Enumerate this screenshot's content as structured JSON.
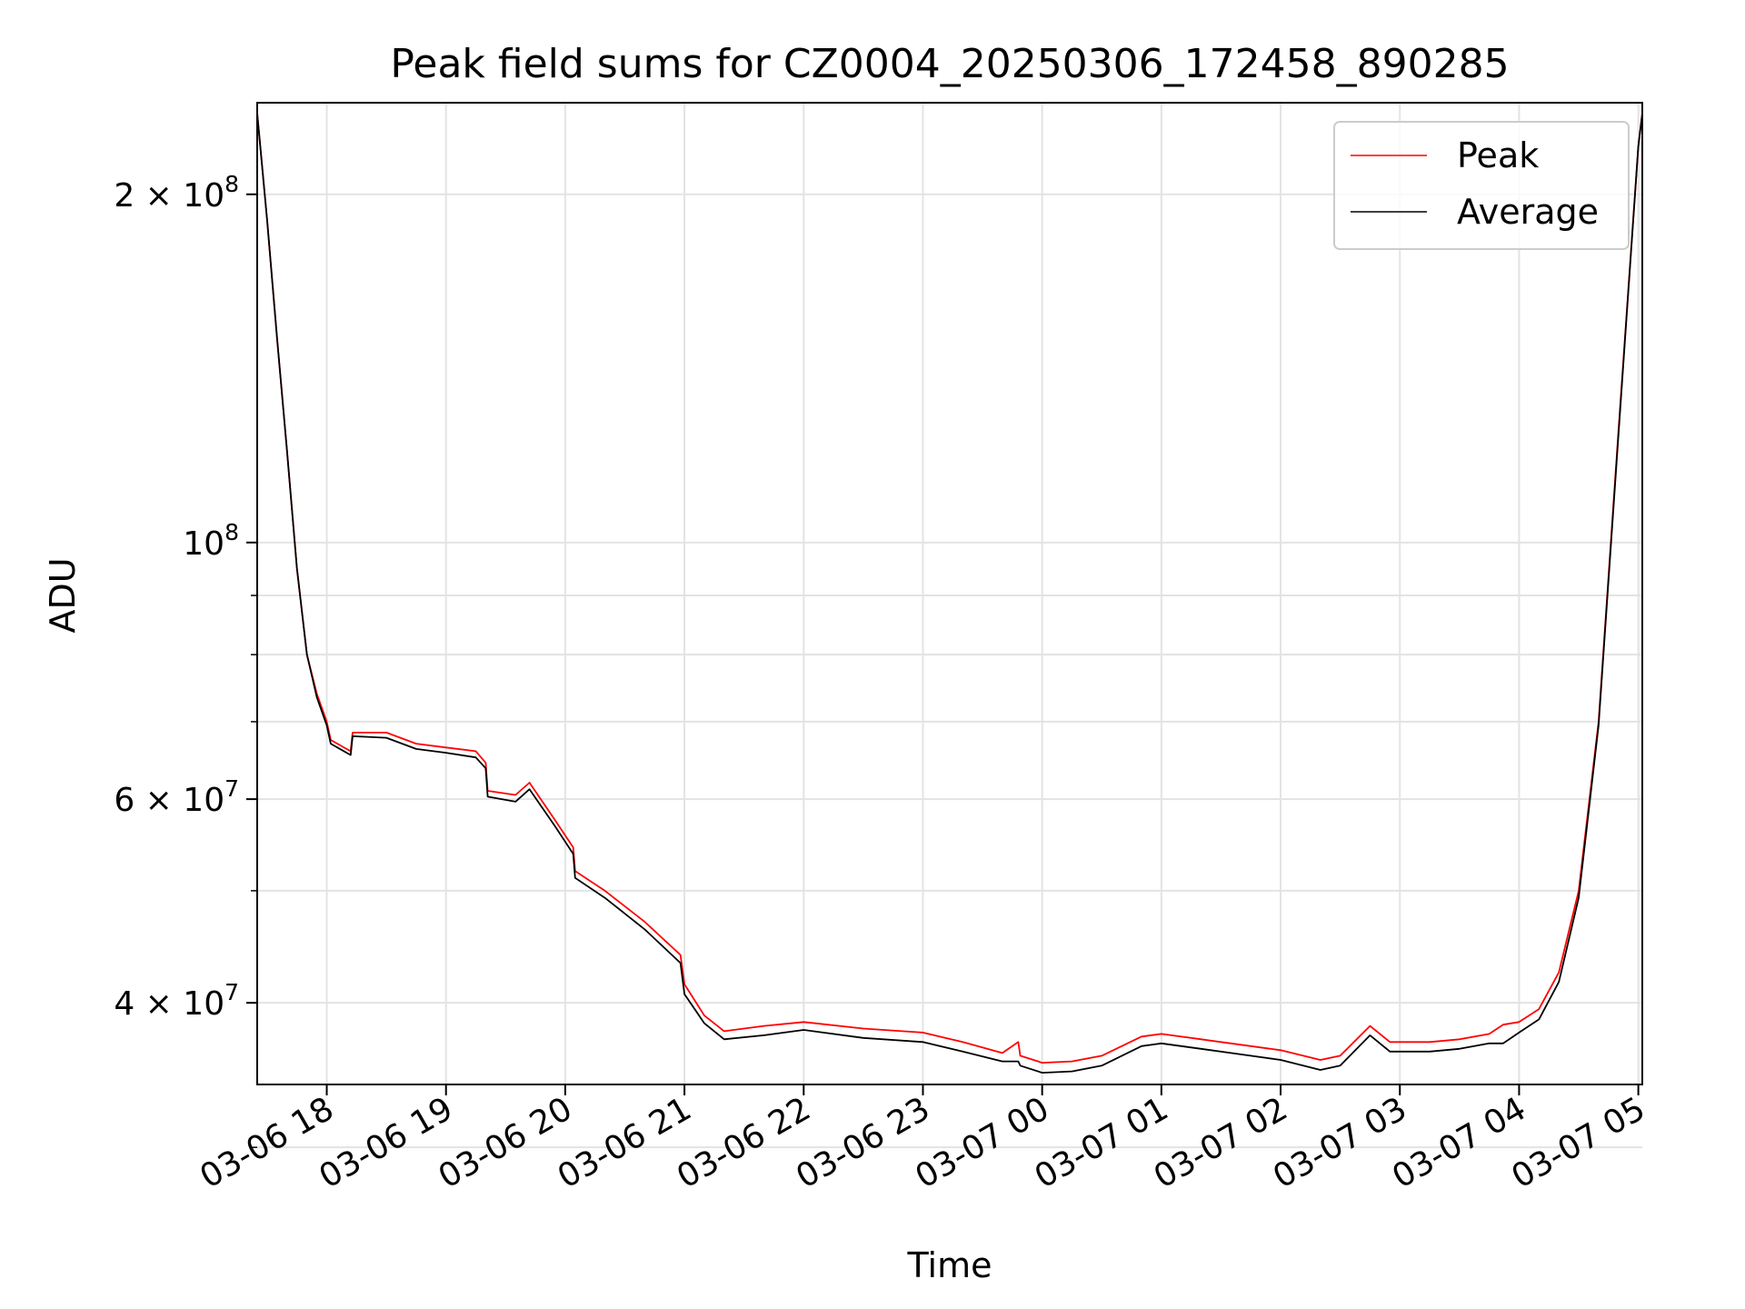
{
  "chart_data": {
    "type": "line",
    "title": "Peak field sums for CZ0004_20250306_172458_890285",
    "xlabel": "Time",
    "ylabel": "ADU",
    "yscale": "log",
    "xlim": [
      "2025-03-06 17:25",
      "2025-03-07 05:02"
    ],
    "ylim": [
      34000000,
      240000000
    ],
    "grid": true,
    "legend_position": "top-right",
    "x_ticks": [
      {
        "x": "2025-03-06 18:00",
        "label": "03-06 18"
      },
      {
        "x": "2025-03-06 19:00",
        "label": "03-06 19"
      },
      {
        "x": "2025-03-06 20:00",
        "label": "03-06 20"
      },
      {
        "x": "2025-03-06 21:00",
        "label": "03-06 21"
      },
      {
        "x": "2025-03-06 22:00",
        "label": "03-06 22"
      },
      {
        "x": "2025-03-06 23:00",
        "label": "03-06 23"
      },
      {
        "x": "2025-03-07 00:00",
        "label": "03-07 00"
      },
      {
        "x": "2025-03-07 01:00",
        "label": "03-07 01"
      },
      {
        "x": "2025-03-07 02:00",
        "label": "03-07 02"
      },
      {
        "x": "2025-03-07 03:00",
        "label": "03-07 03"
      },
      {
        "x": "2025-03-07 04:00",
        "label": "03-07 04"
      },
      {
        "x": "2025-03-07 05:00",
        "label": "03-07 05"
      }
    ],
    "y_major_ticks": [
      {
        "value": 200000000,
        "mantissa": "2 × 10",
        "exp": "8"
      },
      {
        "value": 100000000,
        "mantissa": "10",
        "exp": "8"
      },
      {
        "value": 60000000,
        "mantissa": "6 × 10",
        "exp": "7"
      },
      {
        "value": 40000000,
        "mantissa": "4 × 10",
        "exp": "7"
      }
    ],
    "y_minor_ticks": [
      30000000,
      50000000,
      70000000,
      80000000,
      90000000
    ],
    "series": [
      {
        "name": "Peak",
        "color": "#ff0000",
        "points": [
          [
            "2025-03-06 17:25",
            235000000
          ],
          [
            "2025-03-06 17:30",
            190000000
          ],
          [
            "2025-03-06 17:35",
            150000000
          ],
          [
            "2025-03-06 17:40",
            120000000
          ],
          [
            "2025-03-06 17:45",
            95000000
          ],
          [
            "2025-03-06 17:50",
            80000000
          ],
          [
            "2025-03-06 17:55",
            74000000
          ],
          [
            "2025-03-06 18:00",
            70000000
          ],
          [
            "2025-03-06 18:02",
            67500000
          ],
          [
            "2025-03-06 18:12",
            66000000
          ],
          [
            "2025-03-06 18:13",
            68500000
          ],
          [
            "2025-03-06 18:30",
            68500000
          ],
          [
            "2025-03-06 18:45",
            67000000
          ],
          [
            "2025-03-06 19:00",
            66500000
          ],
          [
            "2025-03-06 19:15",
            66000000
          ],
          [
            "2025-03-06 19:20",
            64500000
          ],
          [
            "2025-03-06 19:21",
            61000000
          ],
          [
            "2025-03-06 19:35",
            60500000
          ],
          [
            "2025-03-06 19:42",
            62000000
          ],
          [
            "2025-03-06 19:55",
            57500000
          ],
          [
            "2025-03-06 20:04",
            54500000
          ],
          [
            "2025-03-06 20:05",
            52000000
          ],
          [
            "2025-03-06 20:20",
            50000000
          ],
          [
            "2025-03-06 20:40",
            47000000
          ],
          [
            "2025-03-06 20:58",
            44000000
          ],
          [
            "2025-03-06 21:00",
            41500000
          ],
          [
            "2025-03-06 21:10",
            39000000
          ],
          [
            "2025-03-06 21:20",
            37800000
          ],
          [
            "2025-03-06 21:40",
            38200000
          ],
          [
            "2025-03-06 22:00",
            38500000
          ],
          [
            "2025-03-06 22:30",
            38000000
          ],
          [
            "2025-03-06 23:00",
            37700000
          ],
          [
            "2025-03-06 23:20",
            37000000
          ],
          [
            "2025-03-06 23:40",
            36200000
          ],
          [
            "2025-03-06 23:48",
            37000000
          ],
          [
            "2025-03-06 23:49",
            36000000
          ],
          [
            "2025-03-07 00:00",
            35500000
          ],
          [
            "2025-03-07 00:15",
            35600000
          ],
          [
            "2025-03-07 00:30",
            36000000
          ],
          [
            "2025-03-07 00:50",
            37400000
          ],
          [
            "2025-03-07 01:00",
            37600000
          ],
          [
            "2025-03-07 01:20",
            37200000
          ],
          [
            "2025-03-07 01:40",
            36800000
          ],
          [
            "2025-03-07 02:00",
            36400000
          ],
          [
            "2025-03-07 02:20",
            35700000
          ],
          [
            "2025-03-07 02:30",
            36000000
          ],
          [
            "2025-03-07 02:45",
            38200000
          ],
          [
            "2025-03-07 02:55",
            37000000
          ],
          [
            "2025-03-07 03:15",
            37000000
          ],
          [
            "2025-03-07 03:30",
            37200000
          ],
          [
            "2025-03-07 03:45",
            37600000
          ],
          [
            "2025-03-07 03:52",
            38300000
          ],
          [
            "2025-03-07 04:00",
            38500000
          ],
          [
            "2025-03-07 04:10",
            39500000
          ],
          [
            "2025-03-07 04:20",
            42500000
          ],
          [
            "2025-03-07 04:30",
            50000000
          ],
          [
            "2025-03-07 04:40",
            70000000
          ],
          [
            "2025-03-07 04:50",
            125000000
          ],
          [
            "2025-03-07 05:00",
            220000000
          ],
          [
            "2025-03-07 05:02",
            235000000
          ]
        ]
      },
      {
        "name": "Average",
        "color": "#000000",
        "points": [
          [
            "2025-03-06 17:25",
            235000000
          ],
          [
            "2025-03-06 17:30",
            190000000
          ],
          [
            "2025-03-06 17:35",
            150000000
          ],
          [
            "2025-03-06 17:40",
            120000000
          ],
          [
            "2025-03-06 17:45",
            95000000
          ],
          [
            "2025-03-06 17:50",
            80000000
          ],
          [
            "2025-03-06 17:55",
            73500000
          ],
          [
            "2025-03-06 18:00",
            69500000
          ],
          [
            "2025-03-06 18:02",
            67000000
          ],
          [
            "2025-03-06 18:12",
            65500000
          ],
          [
            "2025-03-06 18:13",
            68000000
          ],
          [
            "2025-03-06 18:30",
            67800000
          ],
          [
            "2025-03-06 18:45",
            66300000
          ],
          [
            "2025-03-06 19:00",
            65800000
          ],
          [
            "2025-03-06 19:15",
            65200000
          ],
          [
            "2025-03-06 19:20",
            63800000
          ],
          [
            "2025-03-06 19:21",
            60300000
          ],
          [
            "2025-03-06 19:35",
            59700000
          ],
          [
            "2025-03-06 19:42",
            61200000
          ],
          [
            "2025-03-06 19:55",
            56800000
          ],
          [
            "2025-03-06 20:04",
            53800000
          ],
          [
            "2025-03-06 20:05",
            51300000
          ],
          [
            "2025-03-06 20:20",
            49300000
          ],
          [
            "2025-03-06 20:40",
            46300000
          ],
          [
            "2025-03-06 20:58",
            43300000
          ],
          [
            "2025-03-06 21:00",
            40700000
          ],
          [
            "2025-03-06 21:10",
            38400000
          ],
          [
            "2025-03-06 21:20",
            37200000
          ],
          [
            "2025-03-06 21:40",
            37500000
          ],
          [
            "2025-03-06 22:00",
            37900000
          ],
          [
            "2025-03-06 22:30",
            37300000
          ],
          [
            "2025-03-06 23:00",
            37000000
          ],
          [
            "2025-03-06 23:20",
            36300000
          ],
          [
            "2025-03-06 23:40",
            35600000
          ],
          [
            "2025-03-06 23:48",
            35600000
          ],
          [
            "2025-03-06 23:49",
            35300000
          ],
          [
            "2025-03-07 00:00",
            34800000
          ],
          [
            "2025-03-07 00:15",
            34900000
          ],
          [
            "2025-03-07 00:30",
            35300000
          ],
          [
            "2025-03-07 00:50",
            36700000
          ],
          [
            "2025-03-07 01:00",
            36900000
          ],
          [
            "2025-03-07 01:20",
            36500000
          ],
          [
            "2025-03-07 01:40",
            36100000
          ],
          [
            "2025-03-07 02:00",
            35700000
          ],
          [
            "2025-03-07 02:20",
            35000000
          ],
          [
            "2025-03-07 02:30",
            35300000
          ],
          [
            "2025-03-07 02:45",
            37500000
          ],
          [
            "2025-03-07 02:55",
            36300000
          ],
          [
            "2025-03-07 03:15",
            36300000
          ],
          [
            "2025-03-07 03:30",
            36500000
          ],
          [
            "2025-03-07 03:45",
            36900000
          ],
          [
            "2025-03-07 03:52",
            36900000
          ],
          [
            "2025-03-07 04:00",
            37700000
          ],
          [
            "2025-03-07 04:10",
            38700000
          ],
          [
            "2025-03-07 04:20",
            41700000
          ],
          [
            "2025-03-07 04:30",
            49300000
          ],
          [
            "2025-03-07 04:40",
            69500000
          ],
          [
            "2025-03-07 04:50",
            124000000
          ],
          [
            "2025-03-07 05:00",
            220000000
          ],
          [
            "2025-03-07 05:02",
            235000000
          ]
        ]
      }
    ]
  }
}
